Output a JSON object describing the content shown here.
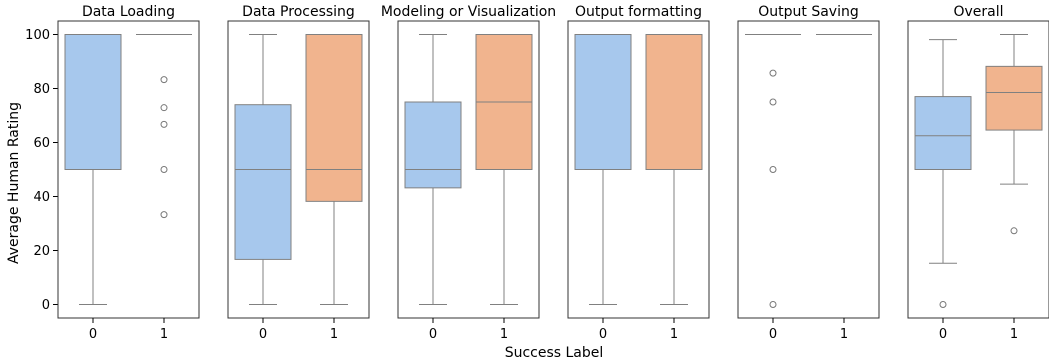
{
  "chart_data": {
    "type": "box",
    "xlabel": "Success Label",
    "ylabel": "Average Human Rating",
    "ylim": [
      -5,
      105
    ],
    "yticks": [
      0,
      20,
      40,
      60,
      80,
      100
    ],
    "categories": [
      "0",
      "1"
    ],
    "shared_y": true,
    "grid": false,
    "colors": {
      "0": "#a7c8ed",
      "1": "#f1b48e",
      "line": "#808080"
    },
    "panels": [
      {
        "title": "Data Loading",
        "boxes": [
          {
            "category": "0",
            "q1": 50,
            "median": 100,
            "q3": 100,
            "whisker_low": 0,
            "whisker_high": 100,
            "outliers": []
          },
          {
            "category": "1",
            "q1": 100,
            "median": 100,
            "q3": 100,
            "whisker_low": 100,
            "whisker_high": 100,
            "outliers": [
              83.3,
              72.9,
              66.7,
              50,
              33.3
            ]
          }
        ]
      },
      {
        "title": "Data Processing",
        "boxes": [
          {
            "category": "0",
            "q1": 16.7,
            "median": 50,
            "q3": 74,
            "whisker_low": 0,
            "whisker_high": 100,
            "outliers": []
          },
          {
            "category": "1",
            "q1": 38.2,
            "median": 50,
            "q3": 100,
            "whisker_low": 0,
            "whisker_high": 100,
            "outliers": []
          }
        ]
      },
      {
        "title": "Modeling or Visualization",
        "boxes": [
          {
            "category": "0",
            "q1": 43.2,
            "median": 50,
            "q3": 75,
            "whisker_low": 0,
            "whisker_high": 100,
            "outliers": []
          },
          {
            "category": "1",
            "q1": 50,
            "median": 75,
            "q3": 100,
            "whisker_low": 0,
            "whisker_high": 100,
            "outliers": []
          }
        ]
      },
      {
        "title": "Output formatting",
        "boxes": [
          {
            "category": "0",
            "q1": 50,
            "median": 100,
            "q3": 100,
            "whisker_low": 0,
            "whisker_high": 100,
            "outliers": []
          },
          {
            "category": "1",
            "q1": 50,
            "median": 100,
            "q3": 100,
            "whisker_low": 0,
            "whisker_high": 100,
            "outliers": []
          }
        ]
      },
      {
        "title": "Output Saving",
        "boxes": [
          {
            "category": "0",
            "q1": 100,
            "median": 100,
            "q3": 100,
            "whisker_low": 100,
            "whisker_high": 100,
            "outliers": [
              85.7,
              75,
              50,
              0
            ]
          },
          {
            "category": "1",
            "q1": 100,
            "median": 100,
            "q3": 100,
            "whisker_low": 100,
            "whisker_high": 100,
            "outliers": []
          }
        ]
      },
      {
        "title": "Overall",
        "boxes": [
          {
            "category": "0",
            "q1": 50,
            "median": 62.5,
            "q3": 77,
            "whisker_low": 15.3,
            "whisker_high": 98.1,
            "outliers": [
              0
            ]
          },
          {
            "category": "1",
            "q1": 64.6,
            "median": 78.5,
            "q3": 88.2,
            "whisker_low": 44.6,
            "whisker_high": 100,
            "outliers": [
              27.3
            ]
          }
        ]
      }
    ]
  }
}
